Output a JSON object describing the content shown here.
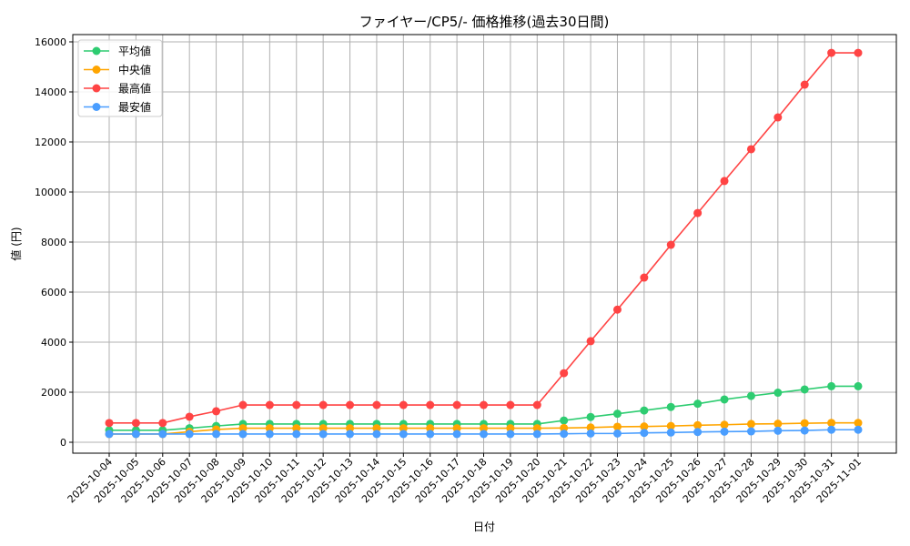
{
  "chart_data": {
    "type": "line",
    "title": "ファイヤー/CP5/- 価格推移(過去30日間)",
    "xlabel": "日付",
    "ylabel": "値 (円)",
    "ylim": [
      0,
      16000
    ],
    "yticks": [
      0,
      2000,
      4000,
      6000,
      8000,
      10000,
      12000,
      14000,
      16000
    ],
    "grid": true,
    "legend_position": "top-left",
    "x": [
      "2025-10-04",
      "2025-10-05",
      "2025-10-06",
      "2025-10-07",
      "2025-10-08",
      "2025-10-09",
      "2025-10-10",
      "2025-10-11",
      "2025-10-12",
      "2025-10-13",
      "2025-10-14",
      "2025-10-15",
      "2025-10-16",
      "2025-10-17",
      "2025-10-18",
      "2025-10-19",
      "2025-10-20",
      "2025-10-21",
      "2025-10-22",
      "2025-10-23",
      "2025-10-24",
      "2025-10-25",
      "2025-10-26",
      "2025-10-27",
      "2025-10-28",
      "2025-10-29",
      "2025-10-30",
      "2025-10-31",
      "2025-11-01"
    ],
    "series": [
      {
        "name": "平均値",
        "color": "#2ecc71",
        "values": [
          480,
          480,
          480,
          560,
          650,
          730,
          730,
          730,
          730,
          730,
          730,
          730,
          730,
          730,
          730,
          730,
          730,
          870,
          1010,
          1140,
          1270,
          1410,
          1540,
          1710,
          1850,
          1980,
          2110,
          2240,
          2240
        ]
      },
      {
        "name": "中央値",
        "color": "#ffa500",
        "values": [
          330,
          330,
          330,
          420,
          510,
          560,
          560,
          560,
          560,
          560,
          560,
          560,
          560,
          560,
          560,
          560,
          560,
          570,
          590,
          620,
          630,
          650,
          680,
          700,
          730,
          740,
          760,
          775,
          775
        ]
      },
      {
        "name": "最高値",
        "color": "#ff4444",
        "values": [
          770,
          770,
          770,
          1020,
          1240,
          1490,
          1490,
          1490,
          1490,
          1490,
          1490,
          1490,
          1490,
          1490,
          1490,
          1490,
          1490,
          2760,
          4040,
          5300,
          6580,
          7890,
          9160,
          10440,
          11710,
          12980,
          14290,
          15560,
          15560
        ]
      },
      {
        "name": "最安値",
        "color": "#4a9eff",
        "values": [
          330,
          330,
          330,
          330,
          330,
          330,
          330,
          330,
          330,
          330,
          330,
          330,
          330,
          330,
          330,
          330,
          330,
          340,
          350,
          350,
          375,
          390,
          410,
          425,
          435,
          460,
          470,
          500,
          500
        ]
      }
    ]
  }
}
